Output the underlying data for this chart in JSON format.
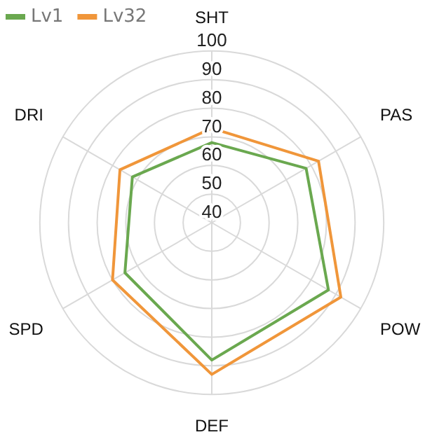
{
  "chart_data": {
    "type": "radar",
    "categories": [
      "SHT",
      "PAS",
      "POW",
      "DEF",
      "SPD",
      "DRI"
    ],
    "series": [
      {
        "name": "Lv1",
        "color": "#6aa84f",
        "values": [
          68,
          78,
          87,
          88,
          75,
          72
        ]
      },
      {
        "name": "Lv32",
        "color": "#f0963a",
        "values": [
          73,
          83,
          92,
          93,
          80,
          77
        ]
      }
    ],
    "ylim": [
      40,
      100
    ],
    "yticks": [
      40,
      50,
      60,
      70,
      80,
      90,
      100
    ],
    "legend": "top left",
    "grid": true,
    "marker": "none"
  }
}
